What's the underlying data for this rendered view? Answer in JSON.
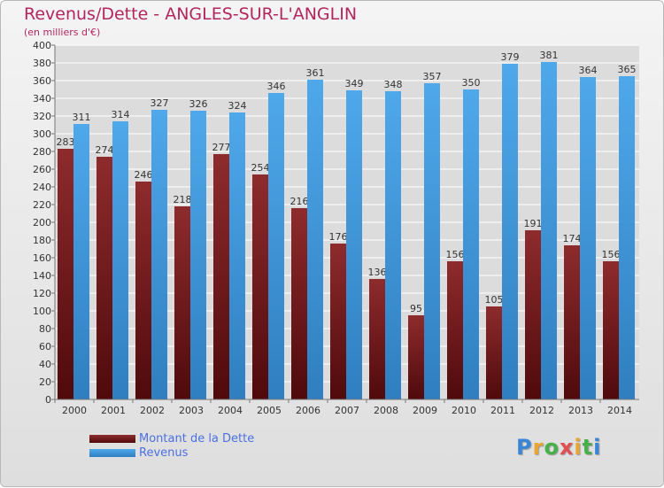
{
  "header": {
    "title": "Revenus/Dette - ANGLES-SUR-L'ANGLIN",
    "subtitle": "(en milliers d'€)"
  },
  "legend": [
    {
      "label": "Montant de la Dette",
      "color": "#7a1a1c"
    },
    {
      "label": "Revenus",
      "color": "#4aa3e6"
    }
  ],
  "logo": {
    "text": "Proxiti"
  },
  "colors": {
    "debt": "#7a1a1c",
    "revenue": "#4aa3e6",
    "title": "#b3265d"
  },
  "chart_data": {
    "type": "bar",
    "categories": [
      "2000",
      "2001",
      "2002",
      "2003",
      "2004",
      "2005",
      "2006",
      "2007",
      "2008",
      "2009",
      "2010",
      "2011",
      "2012",
      "2013",
      "2014"
    ],
    "series": [
      {
        "name": "Montant de la Dette",
        "values": [
          283,
          274,
          246,
          218,
          277,
          254,
          216,
          176,
          136,
          95,
          156,
          105,
          191,
          174,
          156
        ]
      },
      {
        "name": "Revenus",
        "values": [
          311,
          314,
          327,
          326,
          324,
          346,
          361,
          349,
          348,
          357,
          350,
          379,
          381,
          364,
          365
        ]
      }
    ],
    "ylim": [
      0,
      400
    ],
    "yticks": [
      0,
      20,
      40,
      60,
      80,
      100,
      120,
      140,
      160,
      180,
      200,
      220,
      240,
      260,
      280,
      300,
      320,
      340,
      360,
      380,
      400
    ],
    "grid": true,
    "legend_position": "bottom-left"
  }
}
